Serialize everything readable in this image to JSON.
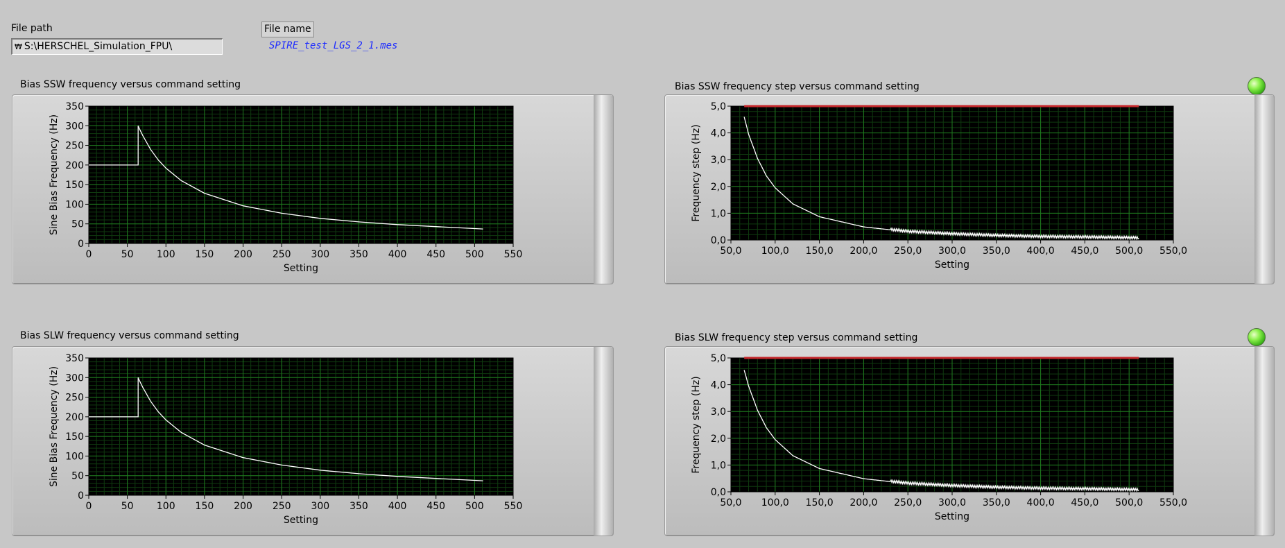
{
  "file_path": {
    "label": "File path",
    "prefix": "ᴸ",
    "value": "S:\\HERSCHEL_Simulation_FPU\\"
  },
  "file_name": {
    "label": "File name",
    "value": "SPIRE_test_LGS_2_1.mes"
  },
  "colors": {
    "plot_bg": "#000000",
    "grid_major": "#1f7a1f",
    "grid_minor": "#0f3a0f",
    "trace": "#ffffff",
    "limit": "#c4282c",
    "led_on": "#55d41f"
  },
  "indicators": {
    "ssw_led": "on",
    "slw_led": "on"
  },
  "chart_data": [
    {
      "type": "line",
      "title": "Bias SSW frequency versus command setting",
      "xlabel": "Setting",
      "ylabel": "Sine Bias Frequency (Hz)",
      "xlim": [
        0,
        550
      ],
      "ylim": [
        0,
        350
      ],
      "xticks": [
        "0",
        "50",
        "100",
        "150",
        "200",
        "250",
        "300",
        "350",
        "400",
        "450",
        "500",
        "550"
      ],
      "yticks": [
        "0",
        "50",
        "100",
        "150",
        "200",
        "250",
        "300",
        "350"
      ],
      "series": [
        {
          "shape": "step_then_decay",
          "x": [
            0,
            64,
            64,
            65,
            70,
            80,
            90,
            100,
            120,
            150,
            200,
            250,
            300,
            350,
            400,
            450,
            511
          ],
          "y": [
            200,
            200,
            300,
            295,
            275,
            240,
            213,
            192,
            160,
            128,
            96,
            77,
            64,
            55,
            48,
            43,
            37
          ]
        }
      ]
    },
    {
      "type": "line",
      "title": "Bias SSW frequency step versus command setting",
      "xlabel": "Setting",
      "ylabel": "Frequency step (Hz)",
      "xlim": [
        50,
        550
      ],
      "ylim": [
        0,
        5
      ],
      "xticks": [
        "50,0",
        "100,0",
        "150,0",
        "200,0",
        "250,0",
        "300,0",
        "350,0",
        "400,0",
        "450,0",
        "500,0",
        "550,0"
      ],
      "yticks": [
        "0,0",
        "1,0",
        "2,0",
        "3,0",
        "4,0",
        "5,0"
      ],
      "limit_line": {
        "y": 5.0,
        "x": [
          65,
          511
        ]
      },
      "series": [
        {
          "x": [
            65,
            70,
            80,
            90,
            100,
            120,
            150,
            200,
            250,
            300,
            350,
            400,
            450,
            511
          ],
          "y": [
            4.6,
            3.95,
            3.05,
            2.4,
            1.95,
            1.35,
            0.87,
            0.49,
            0.31,
            0.22,
            0.16,
            0.12,
            0.1,
            0.07
          ]
        }
      ]
    },
    {
      "type": "line",
      "title": "Bias SLW frequency versus command setting",
      "xlabel": "Setting",
      "ylabel": "Sine Bias Frequency (Hz)",
      "xlim": [
        0,
        550
      ],
      "ylim": [
        0,
        350
      ],
      "xticks": [
        "0",
        "50",
        "100",
        "150",
        "200",
        "250",
        "300",
        "350",
        "400",
        "450",
        "500",
        "550"
      ],
      "yticks": [
        "0",
        "50",
        "100",
        "150",
        "200",
        "250",
        "300",
        "350"
      ],
      "series": [
        {
          "x": [
            0,
            64,
            64,
            65,
            70,
            80,
            90,
            100,
            120,
            150,
            200,
            250,
            300,
            350,
            400,
            450,
            511
          ],
          "y": [
            200,
            200,
            300,
            295,
            275,
            240,
            213,
            192,
            160,
            128,
            96,
            77,
            64,
            55,
            48,
            43,
            37
          ]
        }
      ]
    },
    {
      "type": "line",
      "title": "Bias SLW frequency step versus command setting",
      "xlabel": "Setting",
      "ylabel": "Frequency step (Hz)",
      "xlim": [
        50,
        550
      ],
      "ylim": [
        0,
        5
      ],
      "xticks": [
        "50,0",
        "100,0",
        "150,0",
        "200,0",
        "250,0",
        "300,0",
        "350,0",
        "400,0",
        "450,0",
        "500,0",
        "550,0"
      ],
      "yticks": [
        "0,0",
        "1,0",
        "2,0",
        "3,0",
        "4,0",
        "5,0"
      ],
      "limit_line": {
        "y": 5.0,
        "x": [
          65,
          511
        ]
      },
      "series": [
        {
          "x": [
            65,
            70,
            80,
            90,
            100,
            120,
            150,
            200,
            250,
            300,
            350,
            400,
            450,
            511
          ],
          "y": [
            4.55,
            3.95,
            3.05,
            2.4,
            1.95,
            1.35,
            0.87,
            0.49,
            0.31,
            0.22,
            0.16,
            0.12,
            0.1,
            0.07
          ]
        }
      ]
    }
  ]
}
